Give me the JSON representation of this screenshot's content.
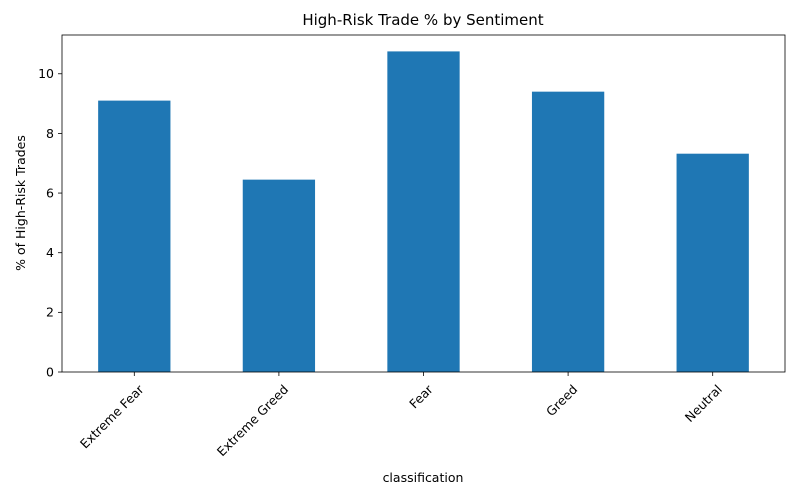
{
  "chart_data": {
    "type": "bar",
    "title": "High-Risk Trade % by Sentiment",
    "xlabel": "classification",
    "ylabel": "% of High-Risk Trades",
    "categories": [
      "Extreme Fear",
      "Extreme Greed",
      "Fear",
      "Greed",
      "Neutral"
    ],
    "values": [
      9.1,
      6.45,
      10.75,
      9.4,
      7.32
    ],
    "ylim": [
      0,
      11.3
    ],
    "yticks": [
      0,
      2,
      4,
      6,
      8,
      10
    ],
    "grid": false,
    "legend": "none",
    "xtick_rotation": 45,
    "colors": {
      "bar": "#1f77b4",
      "axis": "#000000",
      "background": "#ffffff"
    }
  }
}
